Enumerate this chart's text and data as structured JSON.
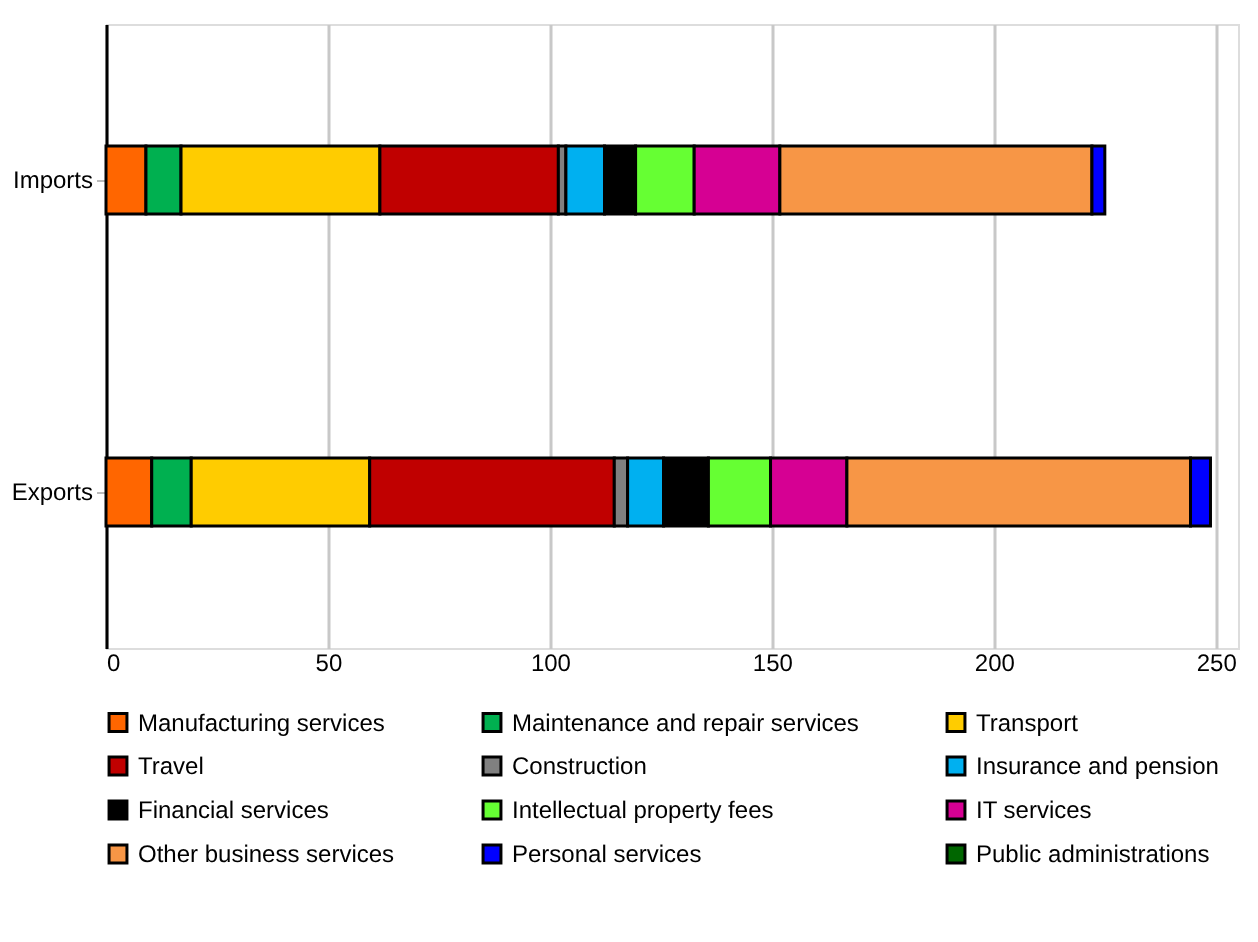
{
  "chart_data": {
    "type": "bar",
    "orientation": "horizontal",
    "stacked": true,
    "categories": [
      "Imports",
      "Exports"
    ],
    "series": [
      {
        "name": "Manufacturing services",
        "color": "#ff6600",
        "values": [
          9.0,
          10.3
        ]
      },
      {
        "name": "Maintenance and repair services",
        "color": "#00b050",
        "values": [
          7.9,
          8.9
        ]
      },
      {
        "name": "Transport",
        "color": "#ffcc00",
        "values": [
          44.8,
          40.2
        ]
      },
      {
        "name": "Travel",
        "color": "#c00000",
        "values": [
          40.2,
          55.1
        ]
      },
      {
        "name": "Construction",
        "color": "#808080",
        "values": [
          1.7,
          3.0
        ]
      },
      {
        "name": "Insurance and pension",
        "color": "#00b0f0",
        "values": [
          8.7,
          8.1
        ]
      },
      {
        "name": "Financial services",
        "color": "#000000",
        "values": [
          7.0,
          10.1
        ]
      },
      {
        "name": "Intellectual property fees",
        "color": "#66ff33",
        "values": [
          13.2,
          14.0
        ]
      },
      {
        "name": "IT services",
        "color": "#d60093",
        "values": [
          19.3,
          17.2
        ]
      },
      {
        "name": "Other business services",
        "color": "#f79646",
        "values": [
          70.3,
          77.4
        ]
      },
      {
        "name": "Personal services",
        "color": "#0000ff",
        "values": [
          2.9,
          4.5
        ]
      },
      {
        "name": "Public administrations",
        "color": "#006600",
        "values": [
          null,
          null
        ]
      }
    ],
    "xlim": [
      0,
      255
    ],
    "xticks": [
      0,
      50,
      100,
      150,
      200,
      250
    ],
    "grid": "x",
    "legend": "bottom"
  }
}
